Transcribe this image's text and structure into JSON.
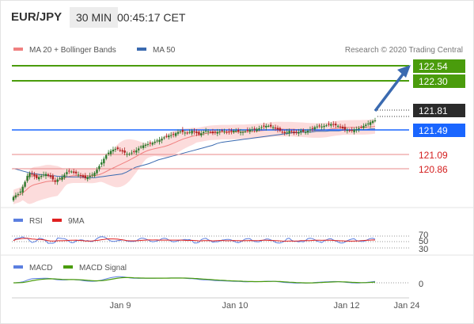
{
  "header": {
    "symbol": "EUR/JPY",
    "timeframe": "30 MIN",
    "time": "00:45:17 CET"
  },
  "legend": {
    "ma20": "MA 20 + Bollinger Bands",
    "ma50": "MA 50",
    "credit": "Research © 2020 Trading Central",
    "rsi": "RSI",
    "ma9": "9MA",
    "macd": "MACD",
    "signal": "MACD Signal"
  },
  "colors": {
    "candle_up": "#2d7a2d",
    "candle_down": "#b22222",
    "bollinger_fill": "#fbd6d6",
    "ma20": "#f08080",
    "ma50": "#3a6ab0",
    "resistance": "#4a9c0c",
    "pivot": "#1a66ff",
    "support": "#d42020",
    "last_price_bg": "#2b2b2b",
    "rsi": "#5b7fe0",
    "ma9": "#e02020",
    "macd_line": "#5b7fe0",
    "signal_line": "#4a9c0c"
  },
  "chart_data": {
    "type": "line",
    "title": "EUR/JPY",
    "x_ticks": [
      "Jan 9",
      "Jan 10",
      "Jan 12",
      "Jan 24"
    ],
    "ylim": [
      120.43,
      122.8
    ],
    "levels": [
      {
        "value": "122.54",
        "kind": "resistance"
      },
      {
        "value": "122.30",
        "kind": "resistance"
      },
      {
        "value": "121.81",
        "kind": "last"
      },
      {
        "value": "121.49",
        "kind": "pivot"
      },
      {
        "value": "121.09",
        "kind": "support"
      },
      {
        "value": "120.86",
        "kind": "support"
      }
    ],
    "close_series": [
      120.55,
      120.58,
      120.6,
      120.64,
      120.72,
      120.8,
      120.9,
      120.94,
      120.92,
      120.89,
      120.86,
      120.88,
      120.9,
      120.92,
      120.93,
      120.9,
      120.88,
      120.84,
      120.8,
      120.84,
      120.86,
      120.88,
      120.92,
      120.96,
      120.98,
      120.97,
      120.95,
      120.94,
      120.92,
      120.9,
      120.88,
      120.86,
      120.88,
      120.9,
      120.92,
      120.95,
      121.0,
      121.06,
      121.12,
      121.18,
      121.24,
      121.28,
      121.31,
      121.33,
      121.34,
      121.34,
      121.32,
      121.3,
      121.28,
      121.26,
      121.26,
      121.28,
      121.3,
      121.32,
      121.35,
      121.38,
      121.4,
      121.41,
      121.42,
      121.43,
      121.44,
      121.46,
      121.48,
      121.49,
      121.51,
      121.53,
      121.55,
      121.56,
      121.57,
      121.58,
      121.6,
      121.62,
      121.63,
      121.62,
      121.61,
      121.6,
      121.62,
      121.64,
      121.62,
      121.6,
      121.58,
      121.6,
      121.62,
      121.64,
      121.63,
      121.62,
      121.6,
      121.61,
      121.62,
      121.63,
      121.64,
      121.63,
      121.62,
      121.62,
      121.63,
      121.64,
      121.64,
      121.63,
      121.62,
      121.62,
      121.63,
      121.64,
      121.66,
      121.66,
      121.66,
      121.67,
      121.68,
      121.7,
      121.71,
      121.72,
      121.72,
      121.71,
      121.7,
      121.68,
      121.66,
      121.64,
      121.62,
      121.6,
      121.62,
      121.64,
      121.62,
      121.6,
      121.61,
      121.62,
      121.64,
      121.63,
      121.62,
      121.64,
      121.66,
      121.68,
      121.7,
      121.71,
      121.72,
      121.71,
      121.72,
      121.73,
      121.74,
      121.75,
      121.74,
      121.73,
      121.72,
      121.7,
      121.68,
      121.66,
      121.65,
      121.64,
      121.64,
      121.66,
      121.66,
      121.68,
      121.7,
      121.72,
      121.74,
      121.76,
      121.78,
      121.8,
      121.81
    ],
    "ma50_series": [
      121.02,
      121.0,
      120.98,
      120.96,
      120.94,
      120.93,
      120.92,
      120.91,
      120.9,
      120.9,
      120.89,
      120.89,
      120.88,
      120.88,
      120.88,
      120.88,
      120.87,
      120.87,
      120.87,
      120.88,
      120.89,
      120.9,
      120.91,
      120.92,
      120.93,
      120.96,
      121.0,
      121.04,
      121.06,
      121.08,
      121.1,
      121.13,
      121.16,
      121.18,
      121.2,
      121.22,
      121.24,
      121.26,
      121.28,
      121.3,
      121.32,
      121.34,
      121.36,
      121.38,
      121.4,
      121.43,
      121.45,
      121.46,
      121.47,
      121.48,
      121.49,
      121.5,
      121.51,
      121.52,
      121.53,
      121.54,
      121.55,
      121.56,
      121.57,
      121.58,
      121.59,
      121.6,
      121.61,
      121.61,
      121.62,
      121.62,
      121.62,
      121.63,
      121.63,
      121.63,
      121.64,
      121.64,
      121.64,
      121.65,
      121.65,
      121.65,
      121.66,
      121.66,
      121.66,
      121.67,
      121.67
    ],
    "rsi_levels": [
      "70",
      "50",
      "30"
    ],
    "macd_level": "0"
  }
}
